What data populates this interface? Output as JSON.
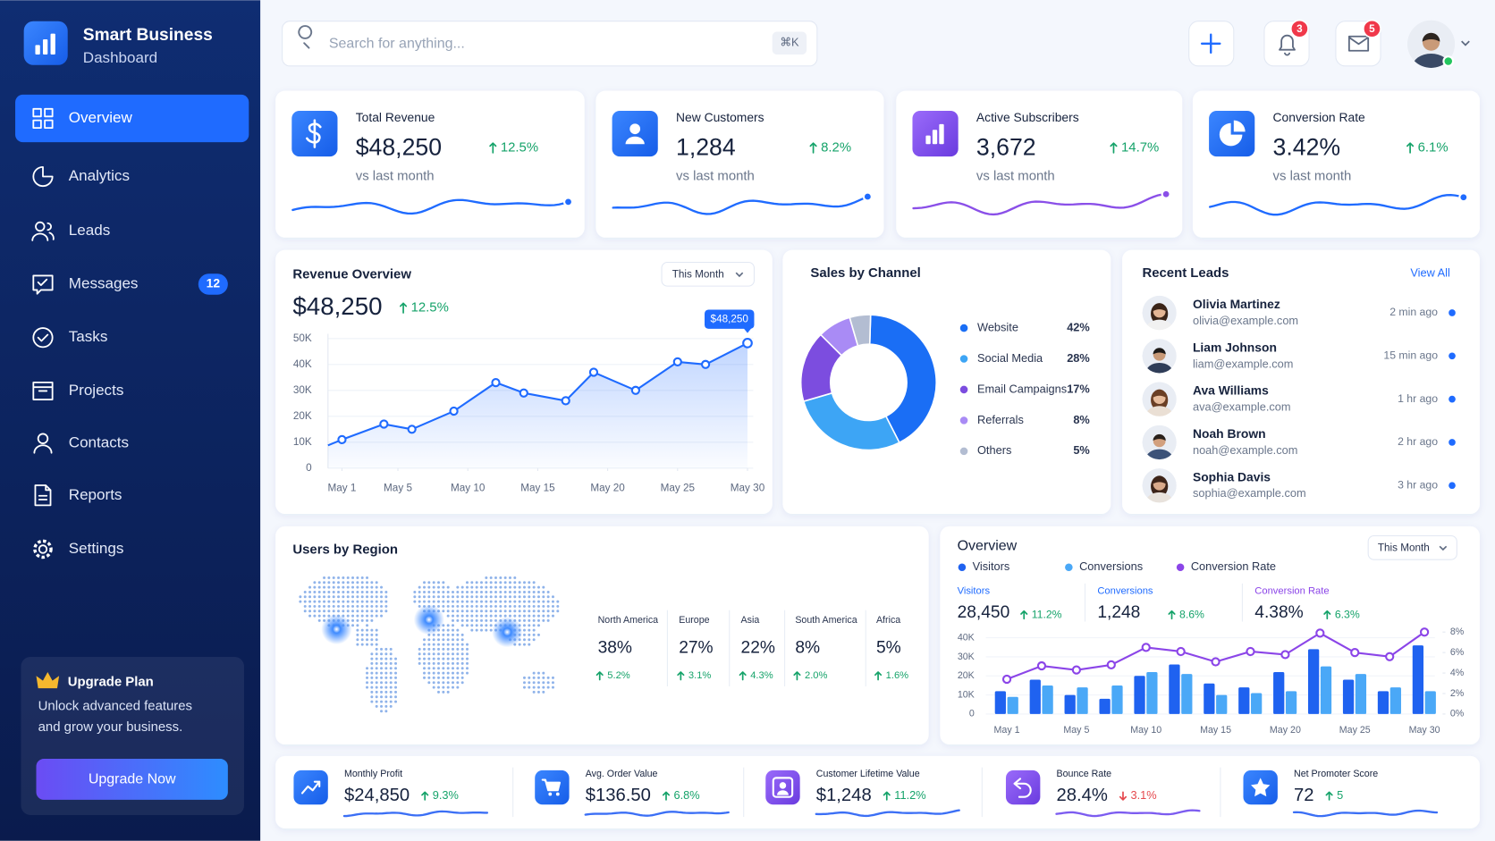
{
  "sidebar": {
    "brand": {
      "title": "Smart Business",
      "subtitle": "Dashboard"
    },
    "nav": [
      {
        "label": "Overview",
        "active": true
      },
      {
        "label": "Analytics"
      },
      {
        "label": "Leads"
      },
      {
        "label": "Messages",
        "badge": 12
      },
      {
        "label": "Tasks"
      },
      {
        "label": "Projects"
      },
      {
        "label": "Contacts"
      },
      {
        "label": "Reports"
      },
      {
        "label": "Settings"
      }
    ],
    "upgrade": {
      "title": "Upgrade Plan",
      "text_lines": [
        "Unlock advanced features",
        "and grow your business."
      ],
      "button": "Upgrade Now"
    }
  },
  "topbar": {
    "search_placeholder": "Search for anything...",
    "shortcut": "⌘K",
    "notification_count": 3,
    "message_count": 5
  },
  "kpis": [
    {
      "title": "Total Revenue",
      "value": "$48,250",
      "change": "12.5%",
      "note": "vs last month"
    },
    {
      "title": "New Customers",
      "value": "1,284",
      "change": "8.2%",
      "note": "vs last month"
    },
    {
      "title": "Active Subscribers",
      "value": "3,672",
      "change": "14.7%",
      "note": "vs last month"
    },
    {
      "title": "Conversion Rate",
      "value": "3.42%",
      "change": "6.1%",
      "note": "vs last month"
    }
  ],
  "chart_data": [
    {
      "type": "line",
      "title": "Revenue Overview",
      "period": "This Month",
      "total": "$48,250",
      "change": "12.5%",
      "x": [
        1,
        4,
        6,
        9,
        12,
        14,
        17,
        19,
        22,
        25,
        27,
        30
      ],
      "values": [
        11000,
        17000,
        15000,
        22000,
        33000,
        29000,
        26000,
        37000,
        30000,
        41000,
        40000,
        48250
      ],
      "value_labels": [
        null,
        null,
        null,
        null,
        null,
        null,
        null,
        null,
        null,
        null,
        null,
        "$48,250"
      ],
      "color": "#1f6bff",
      "xlim": [
        0,
        30
      ],
      "xticks": [
        {
          "value": 1,
          "label": "May 1"
        },
        {
          "value": 5,
          "label": "May 5"
        },
        {
          "value": 10,
          "label": "May 10"
        },
        {
          "value": 15,
          "label": "May 15"
        },
        {
          "value": 20,
          "label": "May 20"
        },
        {
          "value": 25,
          "label": "May 25"
        },
        {
          "value": 30,
          "label": "May 30"
        }
      ],
      "ylim": [
        0,
        50000
      ],
      "yticks": [
        0,
        {
          "value": 10000,
          "label": "10K"
        },
        {
          "value": 20000,
          "label": "20K"
        },
        {
          "value": 30000,
          "label": "30K"
        },
        {
          "value": 40000,
          "label": "40K"
        },
        {
          "value": 50000,
          "label": "50K"
        }
      ],
      "grid": true
    },
    {
      "type": "donut",
      "title": "Sales by Channel",
      "categories": [
        "Website",
        "Social Media",
        "Email Campaigns",
        "Referrals",
        "Others"
      ],
      "values": [
        42,
        28,
        17,
        8,
        5
      ],
      "value_labels": [
        "42%",
        "28%",
        "17%",
        "8%",
        "5%"
      ],
      "colors": [
        "#1a6ef5",
        "#3da5f5",
        "#7c4ddf",
        "#a98bf5",
        "#b3bdd2"
      ]
    },
    {
      "type": "bar",
      "title": "Overview",
      "period": "This Month",
      "categories": [
        "May 1",
        null,
        "May 5",
        null,
        "May 10",
        null,
        "May 15",
        null,
        "May 20",
        null,
        "May 25",
        null,
        "May 30"
      ],
      "series": [
        {
          "name": "Visitors",
          "color": "#1f62f0",
          "values": [
            12000,
            18000,
            10000,
            8000,
            20000,
            26000,
            16000,
            14000,
            22000,
            34000,
            18000,
            12000,
            36000
          ]
        },
        {
          "name": "Conversions",
          "color": "#4aa8f7",
          "values": [
            9000,
            15000,
            14000,
            15000,
            22000,
            21000,
            10000,
            11000,
            12000,
            25000,
            21000,
            14000,
            12000
          ]
        },
        {
          "name": "Conversion Rate",
          "color": "#8b45e8",
          "type": "line",
          "axis": "y2",
          "values": [
            3.4,
            4.7,
            4.3,
            4.8,
            6.5,
            6.1,
            5.1,
            6.1,
            5.8,
            7.9,
            6.0,
            5.6,
            8.0
          ]
        }
      ],
      "ylim": [
        0,
        40000
      ],
      "yticks": [
        0,
        {
          "value": 10000,
          "label": "10K"
        },
        {
          "value": 20000,
          "label": "20K"
        },
        {
          "value": 30000,
          "label": "30K"
        },
        {
          "value": 40000,
          "label": "40K"
        }
      ],
      "y2lim": [
        0,
        8
      ],
      "y2ticks": [
        {
          "value": 0,
          "label": "0%"
        },
        {
          "value": 2,
          "label": "2%"
        },
        {
          "value": 4,
          "label": "4%"
        },
        {
          "value": 6,
          "label": "6%"
        },
        {
          "value": 8,
          "label": "8%"
        }
      ],
      "stats": [
        {
          "label": "Visitors",
          "value": "28,450",
          "change": "11.2%"
        },
        {
          "label": "Conversions",
          "value": "1,248",
          "change": "8.6%"
        },
        {
          "label": "Conversion Rate",
          "value": "4.38%",
          "change": "6.3%"
        }
      ]
    }
  ],
  "recent_leads": {
    "title": "Recent Leads",
    "link": "View All",
    "leads": [
      {
        "name": "Olivia Martinez",
        "email": "olivia@example.com",
        "time": "2 min ago"
      },
      {
        "name": "Liam Johnson",
        "email": "liam@example.com",
        "time": "15 min ago"
      },
      {
        "name": "Ava Williams",
        "email": "ava@example.com",
        "time": "1 hr ago"
      },
      {
        "name": "Noah Brown",
        "email": "noah@example.com",
        "time": "2 hr ago"
      },
      {
        "name": "Sophia Davis",
        "email": "sophia@example.com",
        "time": "3 hr ago"
      }
    ]
  },
  "users_by_region": {
    "title": "Users by Region",
    "regions": [
      {
        "name": "North America",
        "share": "38%",
        "change": "5.2%"
      },
      {
        "name": "Europe",
        "share": "27%",
        "change": "3.1%"
      },
      {
        "name": "Asia",
        "share": "22%",
        "change": "4.3%"
      },
      {
        "name": "South America",
        "share": "8%",
        "change": "2.0%"
      },
      {
        "name": "Africa",
        "share": "5%",
        "change": "1.6%"
      }
    ]
  },
  "summary": [
    {
      "title": "Monthly Profit",
      "value": "$24,850",
      "change": "9.3%",
      "trend": "up"
    },
    {
      "title": "Avg. Order Value",
      "value": "$136.50",
      "change": "6.8%",
      "trend": "up"
    },
    {
      "title": "Customer Lifetime Value",
      "value": "$1,248",
      "change": "11.2%",
      "trend": "up"
    },
    {
      "title": "Bounce Rate",
      "value": "28.4%",
      "change": "3.1%",
      "trend": "down"
    },
    {
      "title": "Net Promoter Score",
      "value": "72",
      "change": "5",
      "trend": "up"
    }
  ]
}
